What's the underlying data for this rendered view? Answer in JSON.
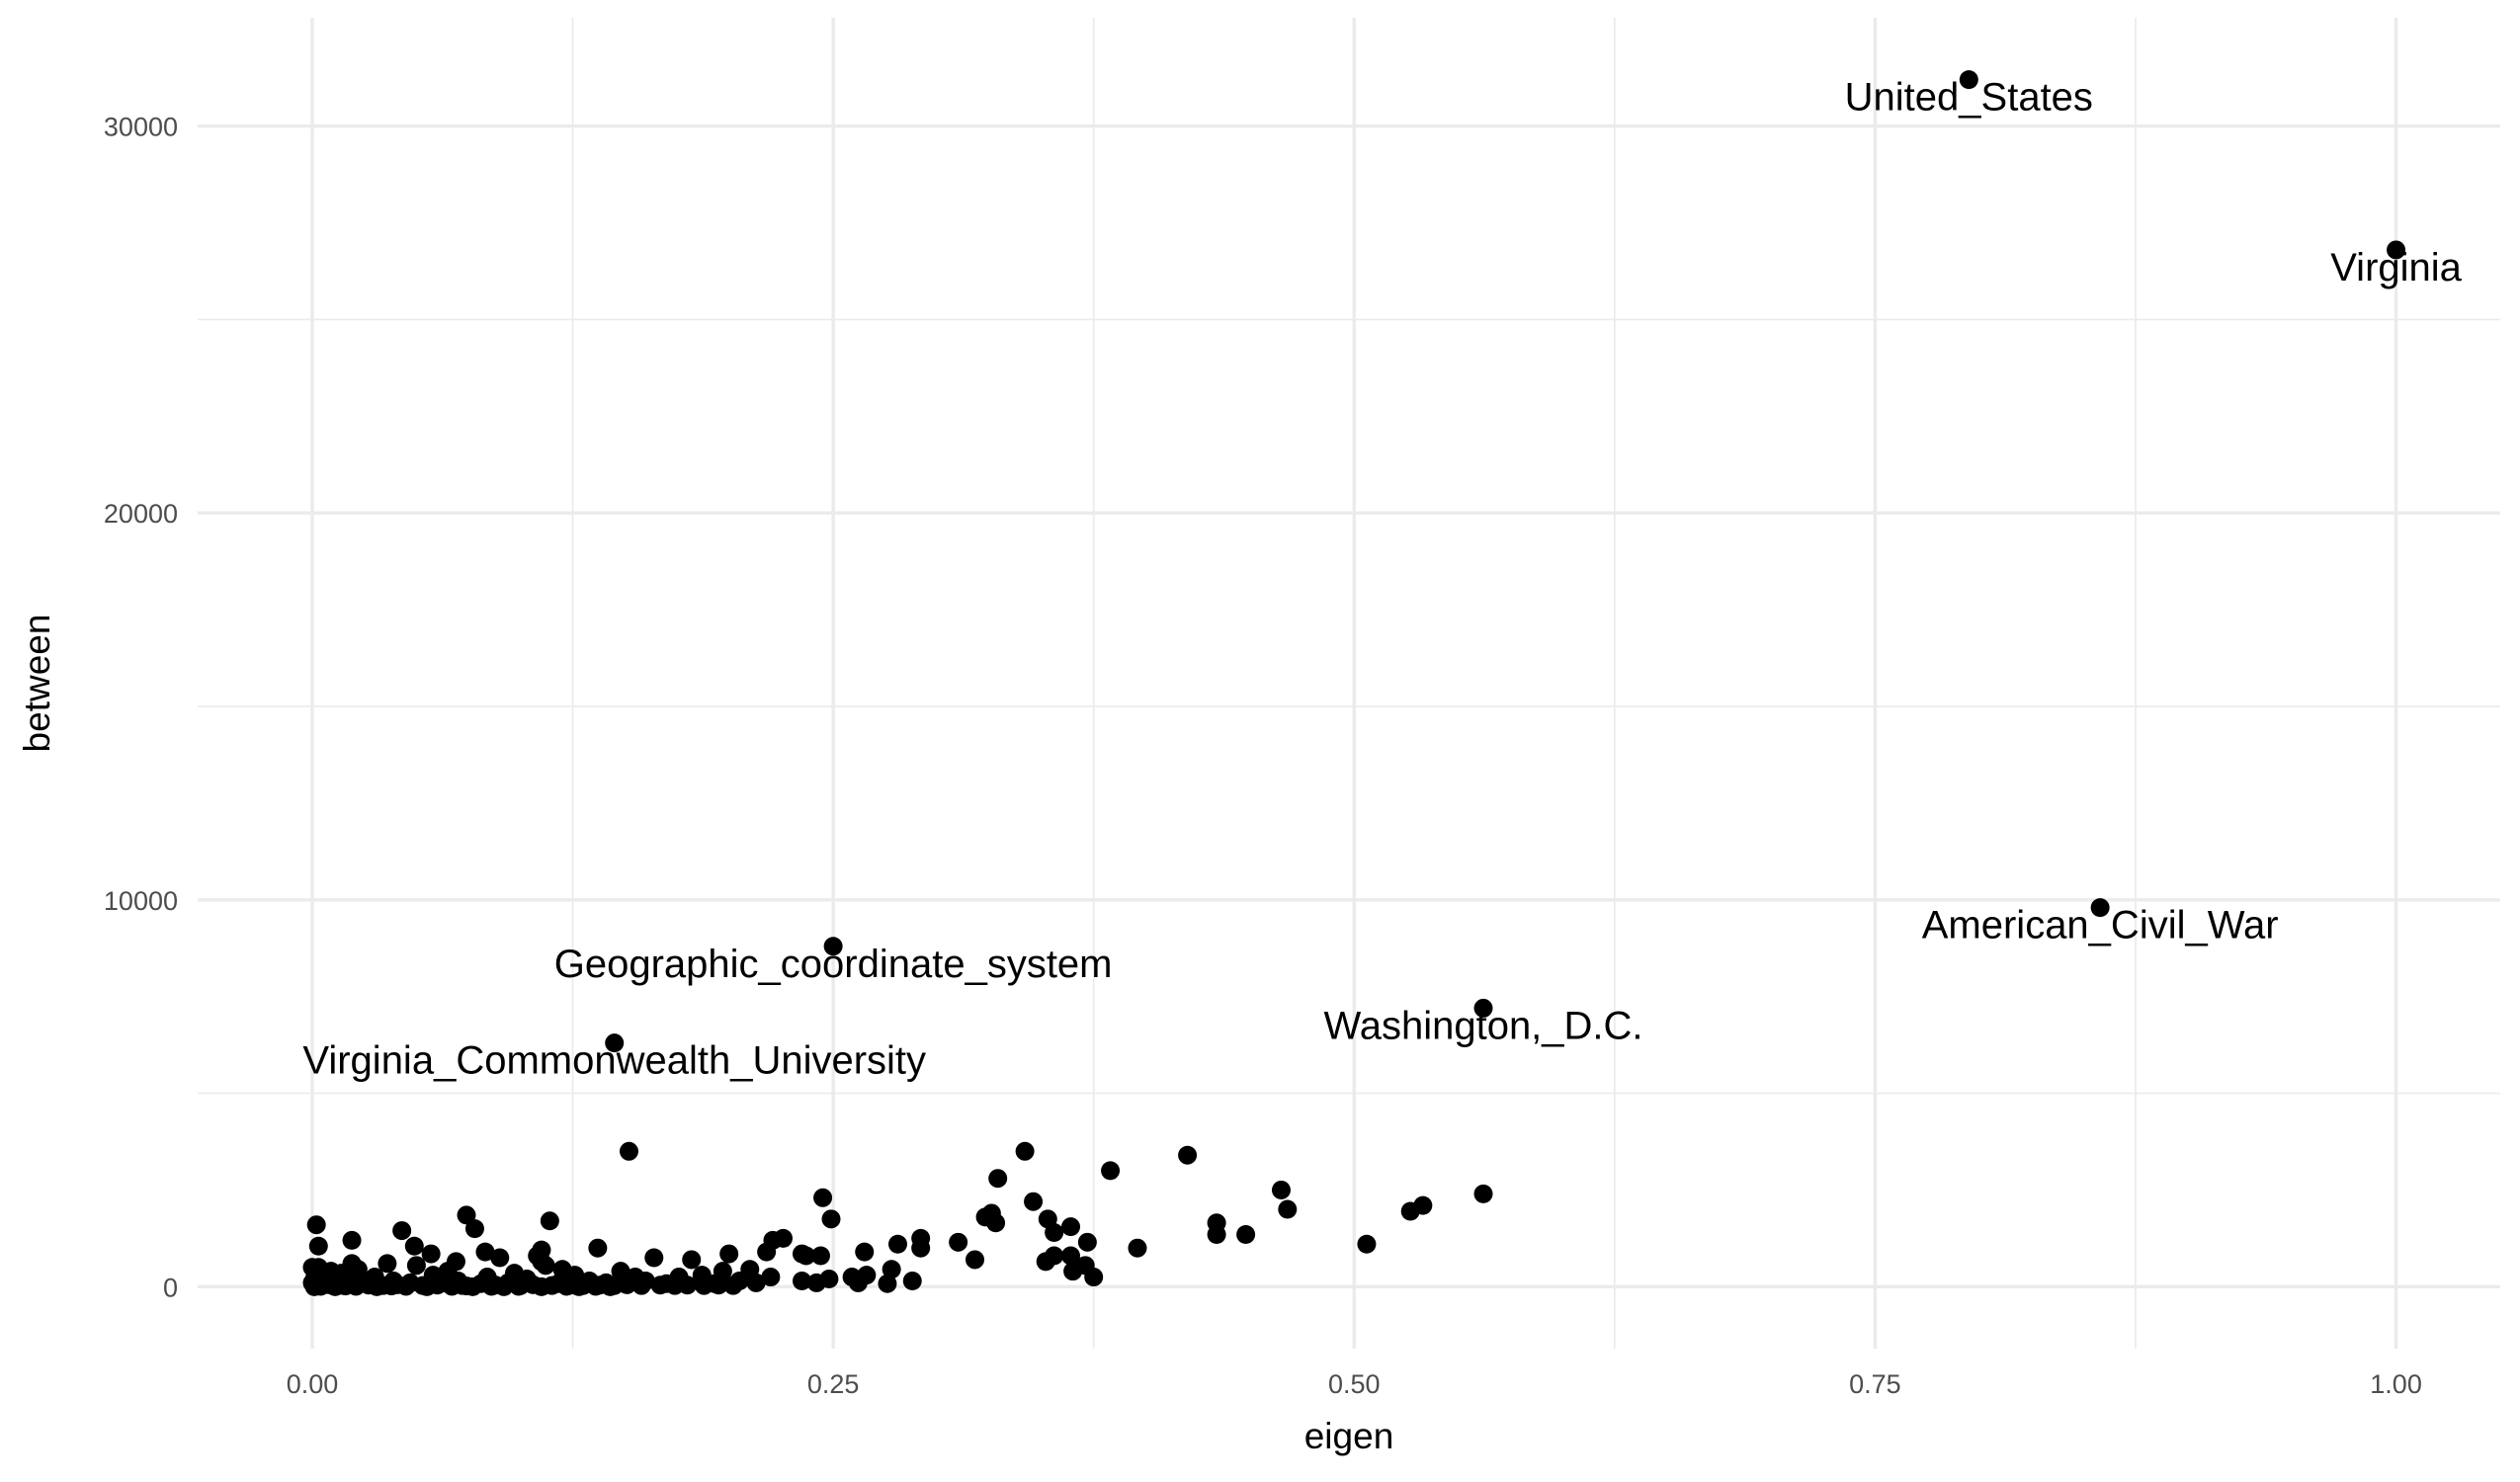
{
  "chart_data": {
    "type": "scatter",
    "title": "",
    "xlabel": "eigen",
    "ylabel": "between",
    "xlim": [
      -0.055,
      1.05
    ],
    "ylim": [
      -1600,
      32800
    ],
    "x_ticks": [
      0.0,
      0.25,
      0.5,
      0.75,
      1.0
    ],
    "x_tick_labels": [
      "0.00",
      "0.25",
      "0.50",
      "0.75",
      "1.00"
    ],
    "y_ticks": [
      0,
      10000,
      20000,
      30000
    ],
    "y_tick_labels": [
      "0",
      "10000",
      "20000",
      "30000"
    ],
    "grid": true,
    "point_color": "#000000",
    "labeled_points": [
      {
        "label": "United_States",
        "x": 0.795,
        "y": 31200
      },
      {
        "label": "Virginia",
        "x": 1.0,
        "y": 26800
      },
      {
        "label": "American_Civil_War",
        "x": 0.858,
        "y": 9800
      },
      {
        "label": "Geographic_coordinate_system",
        "x": 0.25,
        "y": 8800
      },
      {
        "label": "Washington,_D.C.",
        "x": 0.562,
        "y": 7200
      },
      {
        "label": "Virginia_Commonwealth_University",
        "x": 0.145,
        "y": 6300
      }
    ],
    "points": [
      [
        0.152,
        3500
      ],
      [
        0.342,
        3500
      ],
      [
        0.42,
        3400
      ],
      [
        0.383,
        3000
      ],
      [
        0.329,
        2800
      ],
      [
        0.465,
        2500
      ],
      [
        0.562,
        2400
      ],
      [
        0.245,
        2300
      ],
      [
        0.346,
        2200
      ],
      [
        0.533,
        2100
      ],
      [
        0.468,
        2000
      ],
      [
        0.527,
        1950
      ],
      [
        0.326,
        1900
      ],
      [
        0.323,
        1800
      ],
      [
        0.074,
        1850
      ],
      [
        0.249,
        1750
      ],
      [
        0.353,
        1750
      ],
      [
        0.328,
        1650
      ],
      [
        0.114,
        1700
      ],
      [
        0.434,
        1650
      ],
      [
        0.002,
        1600
      ],
      [
        0.364,
        1550
      ],
      [
        0.078,
        1500
      ],
      [
        0.043,
        1450
      ],
      [
        0.356,
        1400
      ],
      [
        0.434,
        1350
      ],
      [
        0.448,
        1350
      ],
      [
        0.226,
        1250
      ],
      [
        0.292,
        1250
      ],
      [
        0.019,
        1200
      ],
      [
        0.221,
        1200
      ],
      [
        0.31,
        1150
      ],
      [
        0.372,
        1150
      ],
      [
        0.281,
        1100
      ],
      [
        0.506,
        1100
      ],
      [
        0.049,
        1050
      ],
      [
        0.003,
        1050
      ],
      [
        0.396,
        1000
      ],
      [
        0.292,
        1000
      ],
      [
        0.137,
        1000
      ],
      [
        0.11,
        950
      ],
      [
        0.083,
        900
      ],
      [
        0.265,
        900
      ],
      [
        0.218,
        900
      ],
      [
        0.057,
        850
      ],
      [
        0.2,
        850
      ],
      [
        0.235,
        850
      ],
      [
        0.356,
        800
      ],
      [
        0.237,
        800
      ],
      [
        0.244,
        800
      ],
      [
        0.364,
        800
      ],
      [
        0.164,
        750
      ],
      [
        0.09,
        750
      ],
      [
        0.108,
        800
      ],
      [
        0.318,
        700
      ],
      [
        0.182,
        700
      ],
      [
        0.019,
        600
      ],
      [
        0.069,
        650
      ],
      [
        0.352,
        650
      ],
      [
        0.036,
        600
      ],
      [
        0.11,
        650
      ],
      [
        0.05,
        550
      ],
      [
        0.112,
        550
      ],
      [
        0.371,
        550
      ],
      [
        0.0,
        500
      ],
      [
        0.022,
        450
      ],
      [
        0.003,
        500
      ],
      [
        0.065,
        400
      ],
      [
        0.12,
        450
      ],
      [
        0.009,
        400
      ],
      [
        0.148,
        400
      ],
      [
        0.278,
        450
      ],
      [
        0.21,
        450
      ],
      [
        0.197,
        400
      ],
      [
        0.365,
        400
      ],
      [
        0.014,
        350
      ],
      [
        0.058,
        300
      ],
      [
        0.097,
        350
      ],
      [
        0.126,
        300
      ],
      [
        0.187,
        300
      ],
      [
        0.266,
        300
      ],
      [
        0.004,
        250
      ],
      [
        0.03,
        250
      ],
      [
        0.084,
        250
      ],
      [
        0.155,
        250
      ],
      [
        0.176,
        250
      ],
      [
        0.22,
        250
      ],
      [
        0.248,
        200
      ],
      [
        0.259,
        250
      ],
      [
        0.375,
        250
      ],
      [
        0.001,
        200
      ],
      [
        0.012,
        150
      ],
      [
        0.039,
        150
      ],
      [
        0.07,
        150
      ],
      [
        0.103,
        200
      ],
      [
        0.133,
        150
      ],
      [
        0.16,
        150
      ],
      [
        0.205,
        150
      ],
      [
        0.235,
        150
      ],
      [
        0.288,
        150
      ],
      [
        0.0,
        100
      ],
      [
        0.006,
        100
      ],
      [
        0.018,
        80
      ],
      [
        0.025,
        100
      ],
      [
        0.047,
        100
      ],
      [
        0.063,
        100
      ],
      [
        0.081,
        80
      ],
      [
        0.094,
        100
      ],
      [
        0.118,
        80
      ],
      [
        0.141,
        100
      ],
      [
        0.17,
        80
      ],
      [
        0.193,
        80
      ],
      [
        0.213,
        100
      ],
      [
        0.242,
        100
      ],
      [
        0.262,
        100
      ],
      [
        0.276,
        80
      ],
      [
        0.008,
        50
      ],
      [
        0.015,
        30
      ],
      [
        0.027,
        40
      ],
      [
        0.034,
        30
      ],
      [
        0.041,
        50
      ],
      [
        0.053,
        30
      ],
      [
        0.06,
        40
      ],
      [
        0.072,
        30
      ],
      [
        0.088,
        40
      ],
      [
        0.1,
        30
      ],
      [
        0.106,
        50
      ],
      [
        0.115,
        30
      ],
      [
        0.124,
        40
      ],
      [
        0.13,
        30
      ],
      [
        0.138,
        40
      ],
      [
        0.145,
        30
      ],
      [
        0.151,
        50
      ],
      [
        0.158,
        30
      ],
      [
        0.167,
        40
      ],
      [
        0.174,
        30
      ],
      [
        0.18,
        40
      ],
      [
        0.188,
        30
      ],
      [
        0.195,
        40
      ],
      [
        0.202,
        30
      ],
      [
        0.004,
        10
      ],
      [
        0.011,
        0
      ],
      [
        0.021,
        10
      ],
      [
        0.031,
        0
      ],
      [
        0.045,
        10
      ],
      [
        0.055,
        0
      ],
      [
        0.067,
        10
      ],
      [
        0.077,
        0
      ],
      [
        0.086,
        10
      ],
      [
        0.092,
        0
      ],
      [
        0.099,
        10
      ],
      [
        0.11,
        0
      ],
      [
        0.122,
        10
      ],
      [
        0.128,
        0
      ],
      [
        0.136,
        10
      ],
      [
        0.143,
        0
      ],
      [
        0.001,
        0
      ],
      [
        0.016,
        20
      ],
      [
        0.038,
        20
      ],
      [
        0.074,
        20
      ]
    ]
  }
}
